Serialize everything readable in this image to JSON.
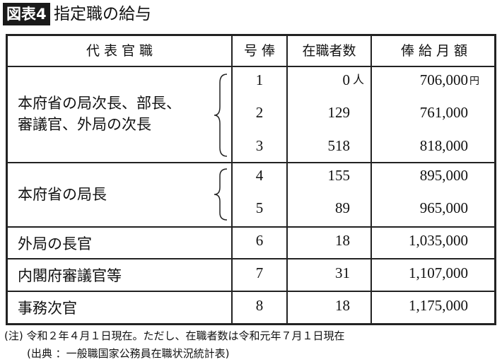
{
  "figure": {
    "badge": "図表4",
    "title": "指定職の給与"
  },
  "headers": [
    "代 表 官 職",
    "号 俸",
    "在職者数",
    "俸 給 月 額"
  ],
  "groups": [
    {
      "title_lines": [
        "本府省の局次長、部長、",
        "審議官、外局の次長"
      ],
      "rows": [
        {
          "grade": "1",
          "count": "0",
          "salary": "706,000"
        },
        {
          "grade": "2",
          "count": "129",
          "salary": "761,000"
        },
        {
          "grade": "3",
          "count": "518",
          "salary": "818,000"
        }
      ]
    },
    {
      "title_lines": [
        "本府省の局長"
      ],
      "rows": [
        {
          "grade": "4",
          "count": "155",
          "salary": "895,000"
        },
        {
          "grade": "5",
          "count": "89",
          "salary": "965,000"
        }
      ]
    },
    {
      "title_lines": [
        "外局の長官"
      ],
      "rows": [
        {
          "grade": "6",
          "count": "18",
          "salary": "1,035,000"
        }
      ]
    },
    {
      "title_lines": [
        "内閣府審議官等"
      ],
      "rows": [
        {
          "grade": "7",
          "count": "31",
          "salary": "1,107,000"
        }
      ]
    },
    {
      "title_lines": [
        "事務次官"
      ],
      "rows": [
        {
          "grade": "8",
          "count": "18",
          "salary": "1,175,000"
        }
      ]
    }
  ],
  "units": {
    "count": "人",
    "salary": "円"
  },
  "notes": {
    "note": "(注) 令和２年４月１日現在。ただし、在職者数は令和元年７月１日現在",
    "source": "(出典 ：一般職国家公務員在職状況統計表)"
  }
}
